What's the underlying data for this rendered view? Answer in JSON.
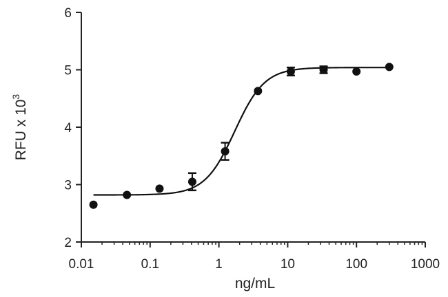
{
  "chart_data": {
    "type": "scatter",
    "title": "",
    "xlabel": "ng/mL",
    "ylabel_main": "RFU x 10",
    "ylabel_exp": "3",
    "x_scale": "log",
    "xlim": [
      0.01,
      1000
    ],
    "ylim": [
      2,
      6
    ],
    "x_ticks": [
      0.01,
      0.1,
      1,
      10,
      100,
      1000
    ],
    "x_tick_labels": [
      "0.01",
      "0.1",
      "1",
      "10",
      "100",
      "1000"
    ],
    "y_ticks": [
      2,
      3,
      4,
      5,
      6
    ],
    "y_tick_labels": [
      "2",
      "3",
      "4",
      "5",
      "6"
    ],
    "grid": false,
    "legend": "none",
    "series": [
      {
        "points": [
          {
            "x": 0.015,
            "y": 2.65,
            "err": 0
          },
          {
            "x": 0.046,
            "y": 2.82,
            "err": 0
          },
          {
            "x": 0.137,
            "y": 2.93,
            "err": 0
          },
          {
            "x": 0.41,
            "y": 3.05,
            "err": 0.15
          },
          {
            "x": 1.23,
            "y": 3.58,
            "err": 0.15
          },
          {
            "x": 3.7,
            "y": 4.63,
            "err": 0
          },
          {
            "x": 11.1,
            "y": 4.97,
            "err": 0.07
          },
          {
            "x": 33.3,
            "y": 5.0,
            "err": 0.06
          },
          {
            "x": 100,
            "y": 4.97,
            "err": 0
          },
          {
            "x": 300,
            "y": 5.05,
            "err": 0
          }
        ],
        "fit": {
          "model": "4PL",
          "bottom": 2.82,
          "top": 5.04,
          "ec50": 1.7,
          "hill": 2.0
        }
      }
    ]
  },
  "colors": {
    "marker": "#111111",
    "axis": "#222222",
    "curve": "#111111"
  }
}
